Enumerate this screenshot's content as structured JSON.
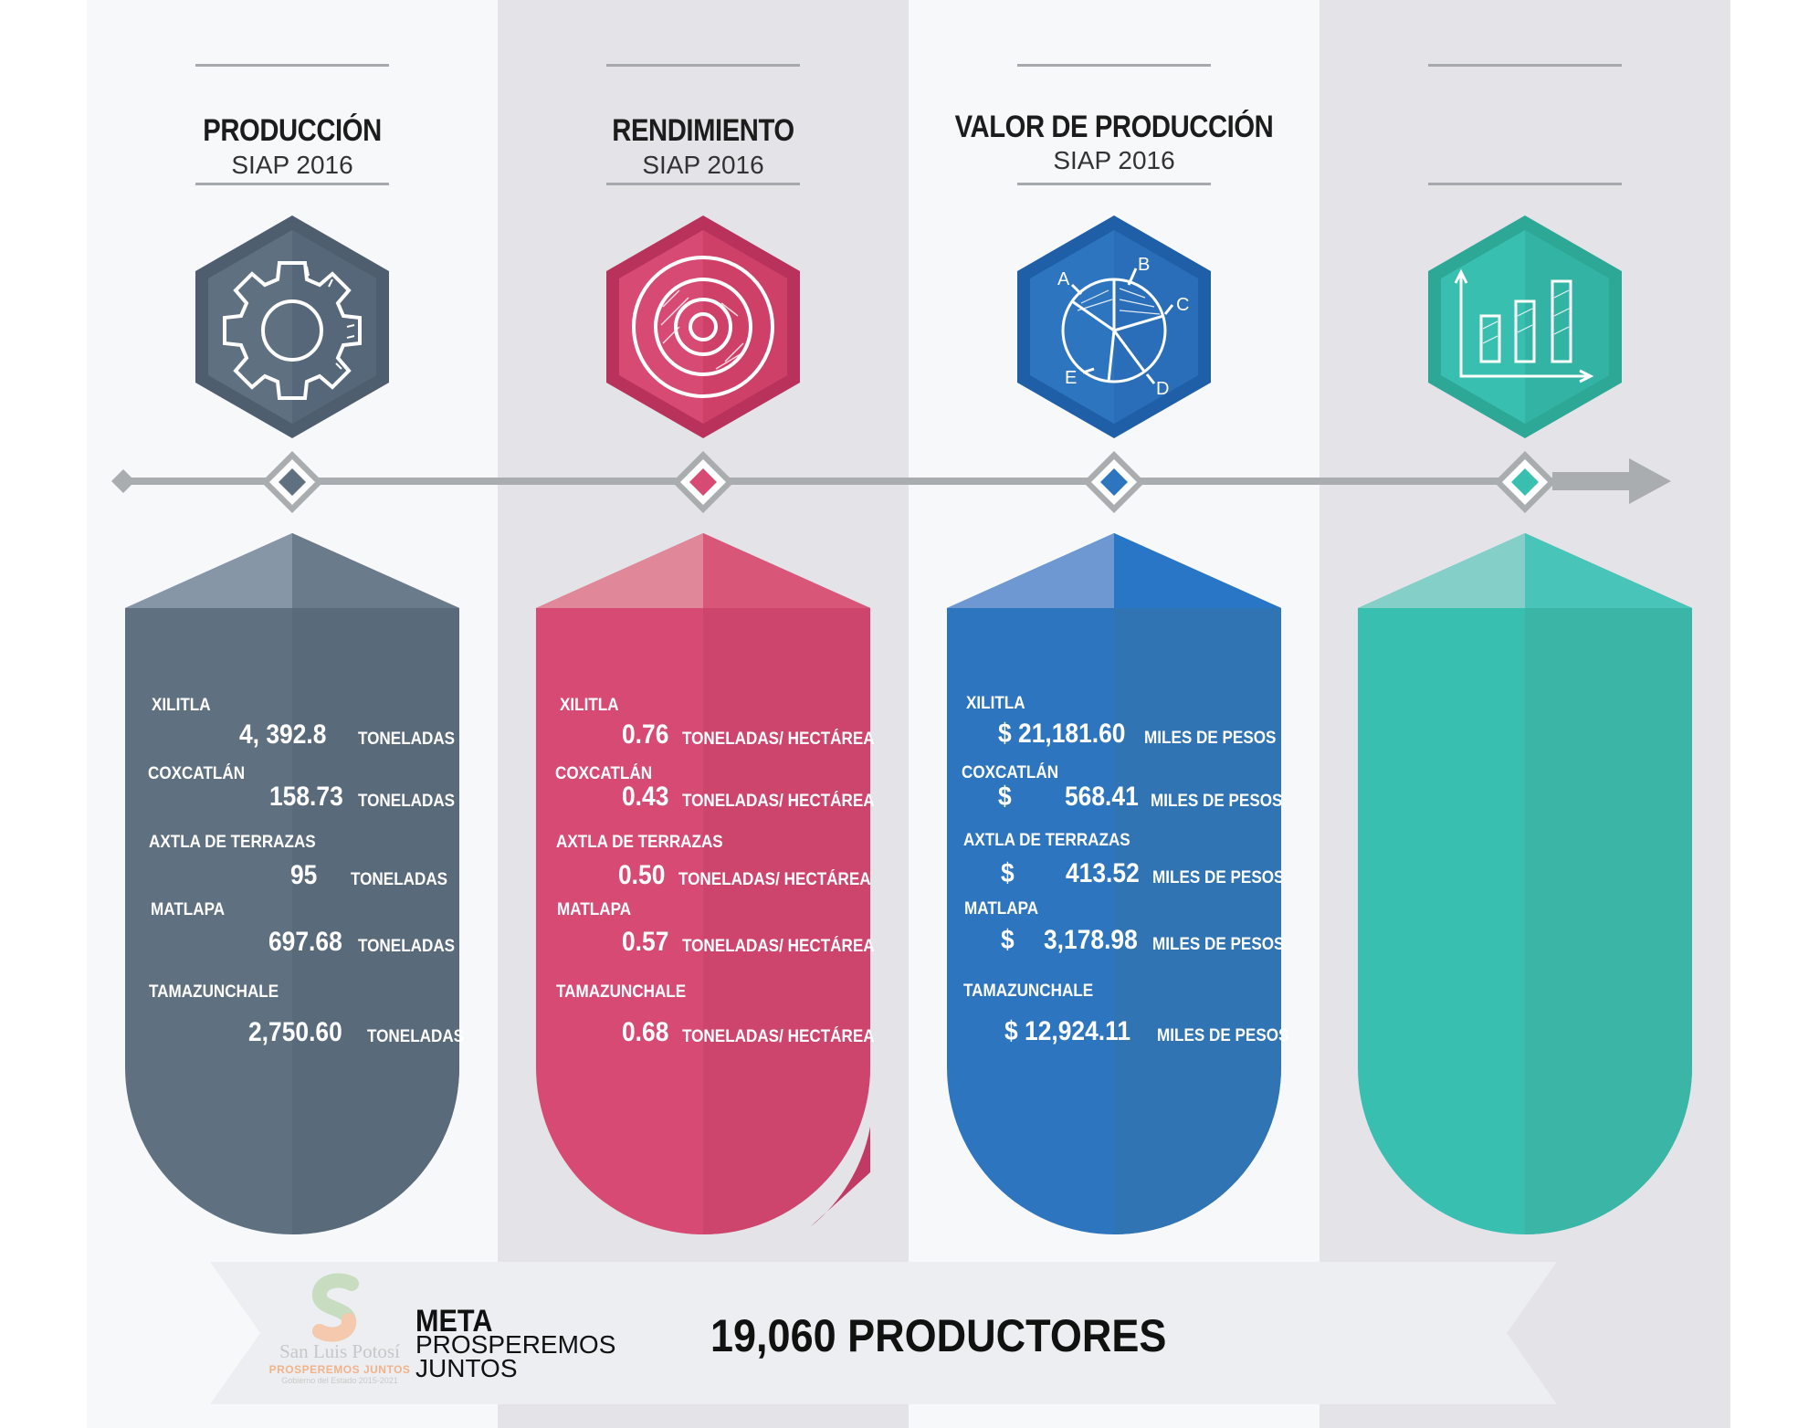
{
  "columns": [
    {
      "title": "PRODUCCIÓN",
      "subtitle": "SIAP 2016",
      "icon": "gear-icon",
      "color": "#5f7080",
      "rows": [
        {
          "label": "XILITLA",
          "value": "4, 392.8",
          "unit": "TONELADAS"
        },
        {
          "label": "COXCATLÁN",
          "value": "158.73",
          "unit": "TONELADAS"
        },
        {
          "label": "AXTLA DE TERRAZAS",
          "value": "95",
          "unit": "TONELADAS"
        },
        {
          "label": "MATLAPA",
          "value": "697.68",
          "unit": "TONELADAS"
        },
        {
          "label": "TAMAZUNCHALE",
          "value": "2,750.60",
          "unit": "TONELADAS"
        }
      ]
    },
    {
      "title": "RENDIMIENTO",
      "subtitle": "SIAP 2016",
      "icon": "target-icon",
      "color": "#d64a73",
      "rows": [
        {
          "label": "XILITLA",
          "value": "0.76",
          "unit": "TONELADAS/ HECTÁREA"
        },
        {
          "label": "COXCATLÁN",
          "value": "0.43",
          "unit": "TONELADAS/ HECTÁREA"
        },
        {
          "label": "AXTLA DE TERRAZAS",
          "value": "0.50",
          "unit": "TONELADAS/ HECTÁREA"
        },
        {
          "label": "MATLAPA",
          "value": "0.57",
          "unit": "TONELADAS/ HECTÁREA"
        },
        {
          "label": "TAMAZUNCHALE",
          "value": "0.68",
          "unit": "TONELADAS/ HECTÁREA"
        }
      ]
    },
    {
      "title": "VALOR DE PRODUCCIÓN",
      "subtitle": "SIAP 2016",
      "icon": "pie-chart-icon",
      "color": "#2e75c0",
      "pie_letters": [
        "A",
        "B",
        "C",
        "D",
        "E"
      ],
      "rows": [
        {
          "label": "XILITLA",
          "value": "$ 21,181.60",
          "unit": "MILES DE PESOS"
        },
        {
          "label": "COXCATLÁN",
          "value": "$",
          "value2": "568.41",
          "unit": "MILES DE PESOS"
        },
        {
          "label": "AXTLA DE TERRAZAS",
          "value": "$",
          "value2": "413.52",
          "unit": "MILES DE PESOS"
        },
        {
          "label": "MATLAPA",
          "value": "$",
          "value2": "3,178.98",
          "unit": "MILES DE PESOS"
        },
        {
          "label": "TAMAZUNCHALE",
          "value": "$ 12,924.11",
          "unit": "MILES DE PESOS"
        }
      ]
    },
    {
      "title": "",
      "subtitle": "",
      "icon": "bar-chart-icon",
      "color": "#38bfb0",
      "rows": []
    }
  ],
  "colors": {
    "accent_gray": "#5f7080",
    "accent_pink": "#d64a73",
    "accent_blue": "#2e75c0",
    "accent_teal": "#38bfb0"
  },
  "footer": {
    "logo_name": "San Luis Potosí",
    "logo_tagline": "PROSPEREMOS JUNTOS",
    "logo_sub": "Gobierno del Estado 2015-2021",
    "meta_label": "META",
    "meta_text": "PROSPEREMOS JUNTOS",
    "goal": "19,060 PRODUCTORES"
  }
}
